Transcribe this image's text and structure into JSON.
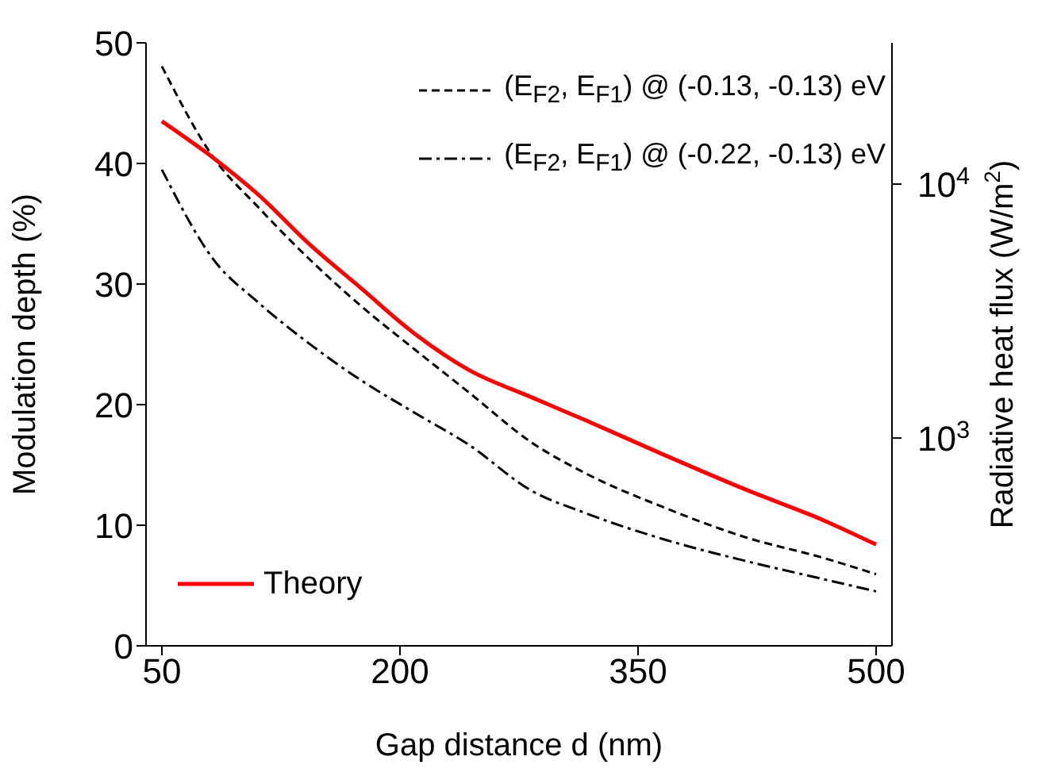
{
  "chart_data": {
    "type": "line",
    "xlabel": "Gap distance d (nm)",
    "ylabel": "Modulation depth (%)",
    "y2label": "Radiative heat flux (W/m$^{2}$)",
    "x": [
      50,
      83,
      110,
      143,
      176,
      209,
      243,
      283,
      317,
      367,
      417,
      467,
      500
    ],
    "series": [
      {
        "name": "(E$_{F2}$, E$_{F1}$) @ (-0.13, -0.13) eV",
        "color": "#000000",
        "axis": "y2",
        "line_style": "dashed",
        "values": [
          29100,
          12600,
          8200,
          5060,
          3290,
          2240,
          1520,
          960,
          726,
          531,
          408,
          337,
          291
        ]
      },
      {
        "name": "(E$_{F2}$, E$_{F1}$) @ (-0.22, -0.13) eV",
        "color": "#000000",
        "axis": "y2",
        "line_style": "dashdot",
        "values": [
          11400,
          5000,
          3450,
          2350,
          1680,
          1260,
          944,
          620,
          506,
          398,
          329,
          278,
          249
        ]
      },
      {
        "name": "Theory",
        "color": "#ff0000",
        "line_style": "solid",
        "values": [
          43.5,
          40.4,
          37.5,
          33.3,
          29.6,
          25.9,
          22.9,
          20.6,
          18.7,
          15.8,
          13.0,
          10.4,
          8.4
        ]
      }
    ],
    "xlim": [
      40,
      510
    ],
    "xticks": [
      50,
      200,
      350,
      500
    ],
    "ylim": [
      0,
      50
    ],
    "yticks": [
      0,
      10,
      20,
      30,
      40,
      50
    ],
    "y2lim": [
      152,
      36000
    ],
    "y2ticks": [
      {
        "value": 1000,
        "label": "10$^{3}$"
      },
      {
        "value": 10000,
        "label": "10$^{4}$"
      }
    ],
    "log": "y2",
    "grid": false,
    "legend": "top right",
    "marker": "none"
  }
}
